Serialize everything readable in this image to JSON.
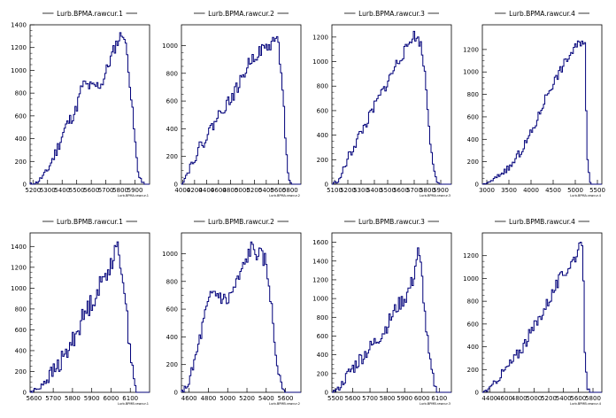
{
  "page": {
    "background": "#ffffff",
    "line_color": "#00007a"
  },
  "chart_data": [
    {
      "type": "histogram",
      "title": "Lurb.BPMA.rawcur.1",
      "xlabel": "Lurb.BPMA.rawcur.1",
      "xlim": [
        5180,
        6000
      ],
      "ylim": [
        0,
        1400
      ],
      "xticks": [
        "5200",
        "5300",
        "5400",
        "5500",
        "5600",
        "5700",
        "5800",
        "5900"
      ],
      "xtick_values": [
        5200,
        5300,
        5400,
        5500,
        5600,
        5700,
        5800,
        5900
      ],
      "yticks": [
        0,
        200,
        400,
        600,
        800,
        1000,
        1200,
        1400
      ],
      "shape": [
        [
          0.0,
          0
        ],
        [
          0.06,
          15
        ],
        [
          0.14,
          110
        ],
        [
          0.22,
          290
        ],
        [
          0.3,
          510
        ],
        [
          0.38,
          640
        ],
        [
          0.44,
          880
        ],
        [
          0.52,
          850
        ],
        [
          0.6,
          880
        ],
        [
          0.66,
          1060
        ],
        [
          0.72,
          1230
        ],
        [
          0.78,
          1340
        ],
        [
          0.82,
          1080
        ],
        [
          0.86,
          600
        ],
        [
          0.9,
          120
        ],
        [
          0.94,
          10
        ],
        [
          0.96,
          0
        ]
      ],
      "noise": 55,
      "seed": 11
    },
    {
      "type": "histogram",
      "title": "Lurb.BPMA.rawcur.2",
      "xlabel": "Lurb.BPMA.rawcur.2",
      "xlim": [
        3980,
        5980
      ],
      "ylim": [
        0,
        1150
      ],
      "xticks": [
        "4000",
        "4200",
        "4400",
        "4600",
        "4800",
        "5000",
        "5200",
        "5400",
        "5600",
        "5800"
      ],
      "xtick_values": [
        4000,
        4200,
        4400,
        4600,
        4800,
        5000,
        5200,
        5400,
        5600,
        5800
      ],
      "yticks": [
        0,
        200,
        400,
        600,
        800,
        1000
      ],
      "shape": [
        [
          0.0,
          0
        ],
        [
          0.04,
          60
        ],
        [
          0.1,
          180
        ],
        [
          0.18,
          300
        ],
        [
          0.26,
          420
        ],
        [
          0.34,
          540
        ],
        [
          0.42,
          620
        ],
        [
          0.5,
          750
        ],
        [
          0.58,
          900
        ],
        [
          0.66,
          960
        ],
        [
          0.74,
          1000
        ],
        [
          0.8,
          1070
        ],
        [
          0.84,
          800
        ],
        [
          0.88,
          200
        ],
        [
          0.9,
          20
        ],
        [
          0.92,
          0
        ]
      ],
      "noise": 45,
      "seed": 22
    },
    {
      "type": "histogram",
      "title": "Lurb.BPMA.rawcur.3",
      "xlabel": "Lurb.BPMA.rawcur.3",
      "xlim": [
        5080,
        5980
      ],
      "ylim": [
        0,
        1300
      ],
      "xticks": [
        "5100",
        "5200",
        "5300",
        "5400",
        "5500",
        "5600",
        "5700",
        "5800",
        "5900"
      ],
      "xtick_values": [
        5100,
        5200,
        5300,
        5400,
        5500,
        5600,
        5700,
        5800,
        5900
      ],
      "yticks": [
        0,
        200,
        400,
        600,
        800,
        1000,
        1200
      ],
      "shape": [
        [
          0.0,
          0
        ],
        [
          0.06,
          30
        ],
        [
          0.14,
          220
        ],
        [
          0.22,
          380
        ],
        [
          0.3,
          520
        ],
        [
          0.38,
          680
        ],
        [
          0.46,
          820
        ],
        [
          0.54,
          980
        ],
        [
          0.62,
          1100
        ],
        [
          0.68,
          1220
        ],
        [
          0.74,
          1160
        ],
        [
          0.78,
          900
        ],
        [
          0.82,
          400
        ],
        [
          0.86,
          80
        ],
        [
          0.88,
          10
        ],
        [
          0.9,
          0
        ]
      ],
      "noise": 45,
      "seed": 33
    },
    {
      "type": "histogram",
      "title": "Lurb.BPMA.rawcur.4",
      "xlabel": "Lurb.BPMA.rawcur.4",
      "xlim": [
        2900,
        5600
      ],
      "ylim": [
        0,
        1420
      ],
      "xticks": [
        "3000",
        "3500",
        "4000",
        "4500",
        "5000",
        "5500"
      ],
      "xtick_values": [
        3000,
        3500,
        4000,
        4500,
        5000,
        5500
      ],
      "yticks": [
        0,
        200,
        400,
        600,
        800,
        1000,
        1200
      ],
      "shape": [
        [
          0.0,
          0
        ],
        [
          0.06,
          15
        ],
        [
          0.14,
          80
        ],
        [
          0.24,
          160
        ],
        [
          0.34,
          320
        ],
        [
          0.44,
          520
        ],
        [
          0.54,
          800
        ],
        [
          0.62,
          950
        ],
        [
          0.7,
          1100
        ],
        [
          0.78,
          1220
        ],
        [
          0.84,
          1290
        ],
        [
          0.86,
          1250
        ],
        [
          0.87,
          600
        ],
        [
          0.88,
          200
        ],
        [
          0.9,
          40
        ],
        [
          0.91,
          0
        ]
      ],
      "noise": 40,
      "seed": 44
    },
    {
      "type": "histogram",
      "title": "Lurb.BPMB.rawcur.1",
      "xlabel": "Lurb.BPMB.rawcur.1",
      "xlim": [
        5580,
        6200
      ],
      "ylim": [
        0,
        1530
      ],
      "xticks": [
        "5600",
        "5700",
        "5800",
        "5900",
        "6000",
        "6100"
      ],
      "xtick_values": [
        5600,
        5700,
        5800,
        5900,
        6000,
        6100
      ],
      "yticks": [
        0,
        200,
        400,
        600,
        800,
        1000,
        1200,
        1400
      ],
      "shape": [
        [
          0.0,
          0
        ],
        [
          0.06,
          30
        ],
        [
          0.14,
          130
        ],
        [
          0.22,
          230
        ],
        [
          0.3,
          360
        ],
        [
          0.38,
          560
        ],
        [
          0.46,
          760
        ],
        [
          0.54,
          920
        ],
        [
          0.62,
          1100
        ],
        [
          0.68,
          1260
        ],
        [
          0.74,
          1380
        ],
        [
          0.78,
          1100
        ],
        [
          0.82,
          600
        ],
        [
          0.86,
          250
        ],
        [
          0.88,
          40
        ],
        [
          0.9,
          0
        ]
      ],
      "noise": 95,
      "seed": 55
    },
    {
      "type": "histogram",
      "title": "Lurb.BPMB.rawcur.2",
      "xlabel": "Lurb.BPMB.rawcur.2",
      "xlim": [
        4520,
        5760
      ],
      "ylim": [
        0,
        1150
      ],
      "xticks": [
        "4600",
        "4800",
        "5000",
        "5200",
        "5400",
        "5600"
      ],
      "xtick_values": [
        4600,
        4800,
        5000,
        5200,
        5400,
        5600
      ],
      "yticks": [
        0,
        200,
        400,
        600,
        800,
        1000
      ],
      "shape": [
        [
          0.0,
          0
        ],
        [
          0.06,
          60
        ],
        [
          0.12,
          250
        ],
        [
          0.2,
          560
        ],
        [
          0.26,
          720
        ],
        [
          0.32,
          700
        ],
        [
          0.38,
          650
        ],
        [
          0.46,
          780
        ],
        [
          0.52,
          900
        ],
        [
          0.58,
          1040
        ],
        [
          0.64,
          1000
        ],
        [
          0.7,
          950
        ],
        [
          0.74,
          750
        ],
        [
          0.78,
          350
        ],
        [
          0.82,
          100
        ],
        [
          0.86,
          20
        ],
        [
          0.88,
          0
        ]
      ],
      "noise": 60,
      "seed": 66
    },
    {
      "type": "histogram",
      "title": "Lurb.BPMB.rawcur.3",
      "xlabel": "Lurb.BPMB.rawcur.3",
      "xlim": [
        5480,
        6170
      ],
      "ylim": [
        0,
        1700
      ],
      "xticks": [
        "5500",
        "5600",
        "5700",
        "5800",
        "5900",
        "6000",
        "6100"
      ],
      "xtick_values": [
        5500,
        5600,
        5700,
        5800,
        5900,
        6000,
        6100
      ],
      "yticks": [
        0,
        200,
        400,
        600,
        800,
        1000,
        1200,
        1400,
        1600
      ],
      "shape": [
        [
          0.0,
          0
        ],
        [
          0.06,
          40
        ],
        [
          0.14,
          200
        ],
        [
          0.24,
          360
        ],
        [
          0.34,
          500
        ],
        [
          0.44,
          660
        ],
        [
          0.54,
          900
        ],
        [
          0.62,
          1020
        ],
        [
          0.68,
          1200
        ],
        [
          0.72,
          1500
        ],
        [
          0.75,
          1300
        ],
        [
          0.78,
          800
        ],
        [
          0.82,
          300
        ],
        [
          0.86,
          80
        ],
        [
          0.88,
          10
        ],
        [
          0.9,
          0
        ]
      ],
      "noise": 80,
      "seed": 77
    },
    {
      "type": "histogram",
      "title": "Lurb.BPMB.rawcur.4",
      "xlabel": "Lurb.BPMB.rawcur.4",
      "xlim": [
        4300,
        5920
      ],
      "ylim": [
        0,
        1400
      ],
      "xticks": [
        "4400",
        "4600",
        "4800",
        "5000",
        "5200",
        "5400",
        "5600",
        "5800"
      ],
      "xtick_values": [
        4400,
        4600,
        4800,
        5000,
        5200,
        5400,
        5600,
        5800
      ],
      "yticks": [
        0,
        200,
        400,
        600,
        800,
        1000,
        1200
      ],
      "shape": [
        [
          0.0,
          0
        ],
        [
          0.06,
          30
        ],
        [
          0.16,
          160
        ],
        [
          0.26,
          280
        ],
        [
          0.36,
          440
        ],
        [
          0.46,
          620
        ],
        [
          0.56,
          820
        ],
        [
          0.64,
          980
        ],
        [
          0.72,
          1100
        ],
        [
          0.78,
          1200
        ],
        [
          0.82,
          1270
        ],
        [
          0.84,
          1250
        ],
        [
          0.86,
          300
        ],
        [
          0.88,
          40
        ],
        [
          0.9,
          0
        ]
      ],
      "noise": 55,
      "seed": 88
    }
  ]
}
